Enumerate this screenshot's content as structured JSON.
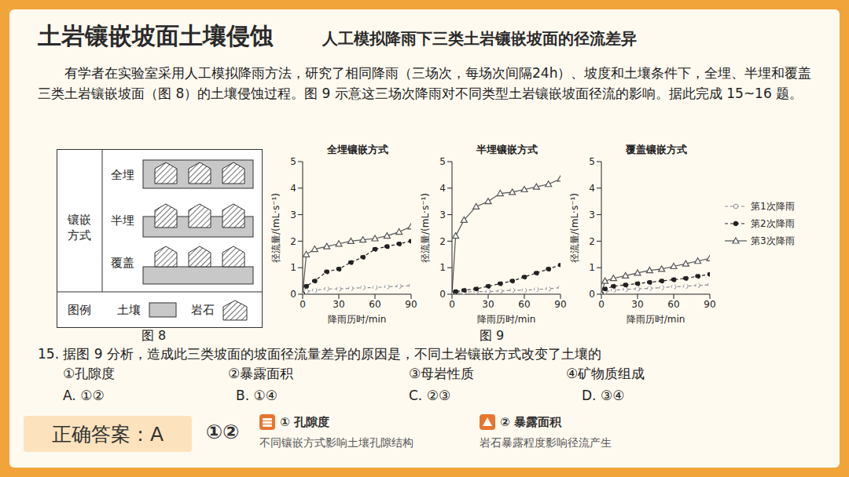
{
  "header": {
    "title": "土岩镶嵌坡面土壤侵蚀",
    "subtitle": "人工模拟降雨下三类土岩镶嵌坡面的径流差异"
  },
  "intro": "有学者在实验室采用人工模拟降雨方法，研究了相同降雨（三场次，每场次间隔24h）、坡度和土壤条件下，全埋、半埋和覆盖三类土岩镶嵌坡面（图 8）的土壤侵蚀过程。图 9 示意这三场次降雨对不同类型土岩镶嵌坡面径流的影响。据此完成 15~16 题。",
  "figure8": {
    "caption": "图 8",
    "group_label": "镶嵌方式",
    "rows": [
      "全埋",
      "半埋",
      "覆盖"
    ],
    "legend_title": "图例",
    "legend": [
      "土壤",
      "岩石"
    ]
  },
  "figure9": {
    "caption": "图 9"
  },
  "chart_data": [
    {
      "type": "line",
      "title": "全埋镶嵌方式",
      "x_label": "降雨历时/min",
      "y_label": "径流量/(mL·s⁻¹)",
      "x": [
        0,
        3,
        10,
        20,
        30,
        40,
        50,
        60,
        70,
        80,
        90
      ],
      "xlim": [
        0,
        90
      ],
      "xticks": [
        0,
        30,
        60,
        90
      ],
      "ylim": [
        0,
        5
      ],
      "yticks": [
        0,
        1,
        2,
        3,
        4,
        5
      ],
      "series": [
        {
          "name": "第1次降雨",
          "color": "#8c8c8c",
          "marker": "open_circle",
          "line_style": "dashed",
          "values": [
            0,
            0.1,
            0.15,
            0.2,
            0.2,
            0.22,
            0.25,
            0.25,
            0.28,
            0.3,
            0.32
          ]
        },
        {
          "name": "第2次降雨",
          "color": "#222222",
          "marker": "filled_circle",
          "line_style": "dashed",
          "values": [
            0,
            0.3,
            0.5,
            0.85,
            0.95,
            1.2,
            1.4,
            1.7,
            1.8,
            1.9,
            2.0
          ]
        },
        {
          "name": "第3次降雨",
          "color": "#555555",
          "marker": "open_triangle",
          "line_style": "solid",
          "values": [
            0,
            1.5,
            1.7,
            1.8,
            1.9,
            2.0,
            2.05,
            2.1,
            2.2,
            2.35,
            2.55
          ]
        }
      ]
    },
    {
      "type": "line",
      "title": "半埋镶嵌方式",
      "x_label": "降雨历时/min",
      "y_label": "径流量/(mL·s⁻¹)",
      "x": [
        0,
        3,
        10,
        20,
        30,
        40,
        50,
        60,
        70,
        80,
        90
      ],
      "xlim": [
        0,
        90
      ],
      "xticks": [
        0,
        30,
        60,
        90
      ],
      "ylim": [
        0,
        5
      ],
      "yticks": [
        0,
        1,
        2,
        3,
        4,
        5
      ],
      "series": [
        {
          "name": "第1次降雨",
          "color": "#8c8c8c",
          "marker": "open_circle",
          "line_style": "dashed",
          "values": [
            0,
            0.05,
            0.08,
            0.1,
            0.1,
            0.12,
            0.15,
            0.15,
            0.18,
            0.2,
            0.25
          ]
        },
        {
          "name": "第2次降雨",
          "color": "#222222",
          "marker": "filled_circle",
          "line_style": "dashed",
          "values": [
            0,
            0.1,
            0.15,
            0.2,
            0.3,
            0.4,
            0.5,
            0.65,
            0.8,
            0.95,
            1.1
          ]
        },
        {
          "name": "第3次降雨",
          "color": "#555555",
          "marker": "open_triangle",
          "line_style": "solid",
          "values": [
            0,
            2.2,
            2.8,
            3.3,
            3.5,
            3.8,
            3.85,
            3.95,
            4.05,
            4.15,
            4.35
          ]
        }
      ]
    },
    {
      "type": "line",
      "title": "覆盖镶嵌方式",
      "x_label": "降雨历时/min",
      "y_label": "径流量/(mL·s⁻¹)",
      "x": [
        0,
        3,
        10,
        20,
        30,
        40,
        50,
        60,
        70,
        80,
        90
      ],
      "xlim": [
        0,
        90
      ],
      "xticks": [
        0,
        30,
        60,
        90
      ],
      "ylim": [
        0,
        5
      ],
      "yticks": [
        0,
        1,
        2,
        3,
        4,
        5
      ],
      "legend": "right",
      "series": [
        {
          "name": "第1次降雨",
          "color": "#8c8c8c",
          "marker": "open_circle",
          "line_style": "dashed",
          "values": [
            0,
            0.1,
            0.15,
            0.18,
            0.2,
            0.22,
            0.25,
            0.28,
            0.3,
            0.33,
            0.35
          ]
        },
        {
          "name": "第2次降雨",
          "color": "#222222",
          "marker": "filled_circle",
          "line_style": "dashed",
          "values": [
            0,
            0.2,
            0.3,
            0.35,
            0.4,
            0.45,
            0.5,
            0.55,
            0.6,
            0.68,
            0.75
          ]
        },
        {
          "name": "第3次降雨",
          "color": "#555555",
          "marker": "open_triangle",
          "line_style": "solid",
          "values": [
            0,
            0.5,
            0.6,
            0.7,
            0.8,
            0.9,
            0.95,
            1.05,
            1.15,
            1.25,
            1.35
          ]
        }
      ]
    }
  ],
  "question": {
    "stem": "15. 据图 9 分析，造成此三类坡面的坡面径流量差异的原因是，不同土岩镶嵌方式改变了土壤的",
    "options": [
      "①孔隙度",
      "②暴露面积",
      "③母岩性质",
      "④矿物质组成"
    ],
    "choices": [
      "A. ①②",
      "B. ①④",
      "C. ②③",
      "D. ③④"
    ]
  },
  "answer": {
    "label": "正确答案：A",
    "marks": "①②",
    "points": [
      {
        "title": "① 孔隙度",
        "desc": "不同镶嵌方式影响土壤孔隙结构"
      },
      {
        "title": "② 暴露面积",
        "desc": "岩石暴露程度影响径流产生"
      }
    ]
  }
}
